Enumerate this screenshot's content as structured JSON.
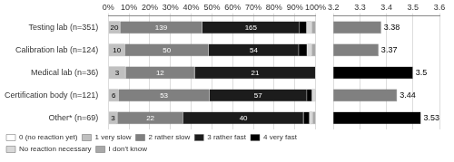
{
  "chart_data": [
    {
      "type": "bar",
      "orientation": "horizontal",
      "stacked": true,
      "categories": [
        "Testing lab (n=351)",
        "Calibration lab (n=124)",
        "Medical lab (n=36)",
        "Certification body (n=121)",
        "Other* (n=69)"
      ],
      "series": [
        {
          "name": "0 (no reaction yet)",
          "color": "#ffffff",
          "values": [
            0,
            0,
            0,
            0,
            0
          ]
        },
        {
          "name": "1 very slow",
          "color": "#c0c0c0",
          "values": [
            0.056980056980057,
            0.0806451612903226,
            0.0833333333333333,
            0.0495867768595041,
            0.0434782608695652
          ],
          "counts": [
            20,
            10,
            3,
            6,
            3
          ]
        },
        {
          "name": "2 rather slow",
          "color": "#808080",
          "values": [
            0.396011396011396,
            0.403225806451613,
            0.333333333333333,
            0.43801652892562,
            0.318840579710145
          ],
          "counts": [
            139,
            50,
            12,
            53,
            22
          ]
        },
        {
          "name": "3 rather fast",
          "color": "#1c1c1c",
          "values": [
            0.47008547008547,
            0.435483870967742,
            0.583333333333333,
            0.471074380165289,
            0.579710144927536
          ],
          "counts": [
            165,
            54,
            21,
            57,
            40
          ]
        },
        {
          "name": "4 very fast",
          "color": "#000000",
          "values": [
            0.0341880341880342,
            0.0403225806451613,
            0,
            0.0247933884297521,
            0.0289855072463768
          ]
        },
        {
          "name": "No reaction necessary",
          "color": "#d8d8d8",
          "values": [
            0.0256410256410256,
            0.0241935483870968,
            0,
            0.0165289256198347,
            0.0144927536231884
          ]
        },
        {
          "name": "I don't know",
          "color": "#a8a8a8",
          "values": [
            0.0170940170940171,
            0.0161290322580645,
            0,
            0,
            0.0144927536231884
          ]
        }
      ],
      "xlim": [
        0,
        1
      ],
      "xticks": [
        {
          "value": 0,
          "label": "0%"
        },
        {
          "value": 0.1,
          "label": "10%"
        },
        {
          "value": 0.2,
          "label": "20%"
        },
        {
          "value": 0.3,
          "label": "30%"
        },
        {
          "value": 0.4,
          "label": "40%"
        },
        {
          "value": 0.5,
          "label": "50%"
        },
        {
          "value": 0.6,
          "label": "60%"
        },
        {
          "value": 0.7,
          "label": "70%"
        },
        {
          "value": 0.8,
          "label": "80%"
        },
        {
          "value": 0.9,
          "label": "90%"
        },
        {
          "value": 1,
          "label": "100%"
        }
      ],
      "grid": true,
      "legend": "lower left"
    },
    {
      "type": "bar",
      "orientation": "horizontal",
      "categories": [
        null,
        null,
        null,
        null,
        null
      ],
      "values": [
        3.38,
        3.37,
        3.5,
        3.44,
        3.53
      ],
      "colors": [
        "#808080",
        "#808080",
        "#000000",
        "#808080",
        "#000000"
      ],
      "xlim": [
        3.2,
        3.6
      ],
      "xticks": [
        3.2,
        3.3,
        3.4,
        3.5,
        3.6
      ],
      "grid": true,
      "data_labels": true,
      "tick_labels": "x"
    }
  ]
}
